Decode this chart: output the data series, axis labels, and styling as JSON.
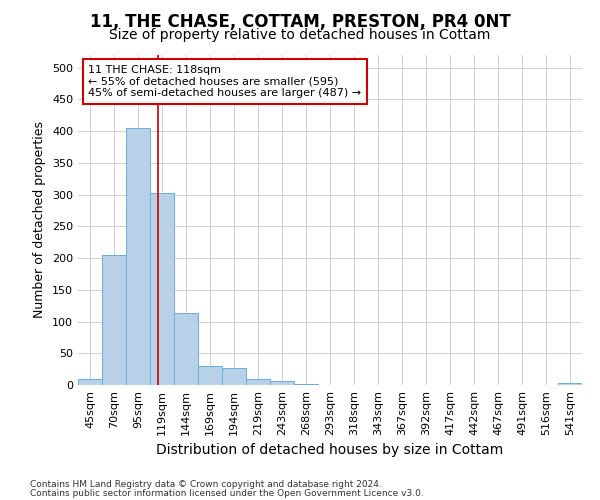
{
  "title": "11, THE CHASE, COTTAM, PRESTON, PR4 0NT",
  "subtitle": "Size of property relative to detached houses in Cottam",
  "xlabel": "Distribution of detached houses by size in Cottam",
  "ylabel": "Number of detached properties",
  "categories": [
    "45sqm",
    "70sqm",
    "95sqm",
    "119sqm",
    "144sqm",
    "169sqm",
    "194sqm",
    "219sqm",
    "243sqm",
    "268sqm",
    "293sqm",
    "318sqm",
    "343sqm",
    "367sqm",
    "392sqm",
    "417sqm",
    "442sqm",
    "467sqm",
    "491sqm",
    "516sqm",
    "541sqm"
  ],
  "values": [
    10,
    205,
    405,
    303,
    113,
    30,
    27,
    9,
    7,
    2,
    0,
    0,
    0,
    0,
    0,
    0,
    0,
    0,
    0,
    0,
    3
  ],
  "bar_color": "#b8d0e8",
  "bar_edge_color": "#6aaed6",
  "property_line_x": 2.85,
  "annotation_line1": "11 THE CHASE: 118sqm",
  "annotation_line2": "← 55% of detached houses are smaller (595)",
  "annotation_line3": "45% of semi-detached houses are larger (487) →",
  "annotation_box_color": "#ffffff",
  "annotation_box_edge": "#cc0000",
  "annotation_line_color": "#cc0000",
  "ylim": [
    0,
    520
  ],
  "yticks": [
    0,
    50,
    100,
    150,
    200,
    250,
    300,
    350,
    400,
    450,
    500
  ],
  "footer_line1": "Contains HM Land Registry data © Crown copyright and database right 2024.",
  "footer_line2": "Contains public sector information licensed under the Open Government Licence v3.0.",
  "background_color": "#ffffff",
  "grid_color": "#d0d0d0",
  "title_fontsize": 12,
  "subtitle_fontsize": 10,
  "ylabel_fontsize": 9,
  "xlabel_fontsize": 10,
  "tick_fontsize": 8,
  "footer_fontsize": 6.5
}
